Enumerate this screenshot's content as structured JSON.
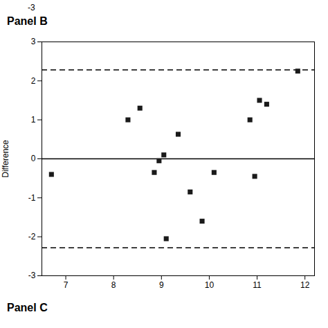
{
  "chart_data": {
    "type": "scatter",
    "annotations": [
      "-3",
      "Panel B",
      "Panel C"
    ],
    "ylabel": "Difference",
    "x": [
      6.7,
      8.3,
      8.55,
      8.85,
      8.95,
      9.05,
      9.1,
      9.35,
      9.6,
      9.85,
      10.1,
      10.85,
      10.95,
      11.05,
      11.2,
      11.85
    ],
    "values": [
      -0.4,
      1.0,
      1.3,
      -0.35,
      -0.05,
      0.1,
      -2.05,
      0.63,
      -0.85,
      -1.6,
      -0.35,
      1.0,
      -0.45,
      1.5,
      1.4,
      2.25
    ],
    "color": "#1a1a1a",
    "marker": "square",
    "reference_lines": [
      {
        "value": 0.0,
        "line_style": "solid"
      },
      {
        "value": 2.28,
        "line_style": "dashed"
      },
      {
        "value": -2.28,
        "line_style": "dashed"
      }
    ],
    "xlim": [
      6.5,
      12.2
    ],
    "ylim": [
      -3.0,
      3.0
    ],
    "xticks": [
      7,
      8,
      9,
      10,
      11,
      12
    ],
    "yticks": [
      -3,
      -2,
      -1,
      0,
      1,
      2,
      3
    ],
    "grid": false
  }
}
